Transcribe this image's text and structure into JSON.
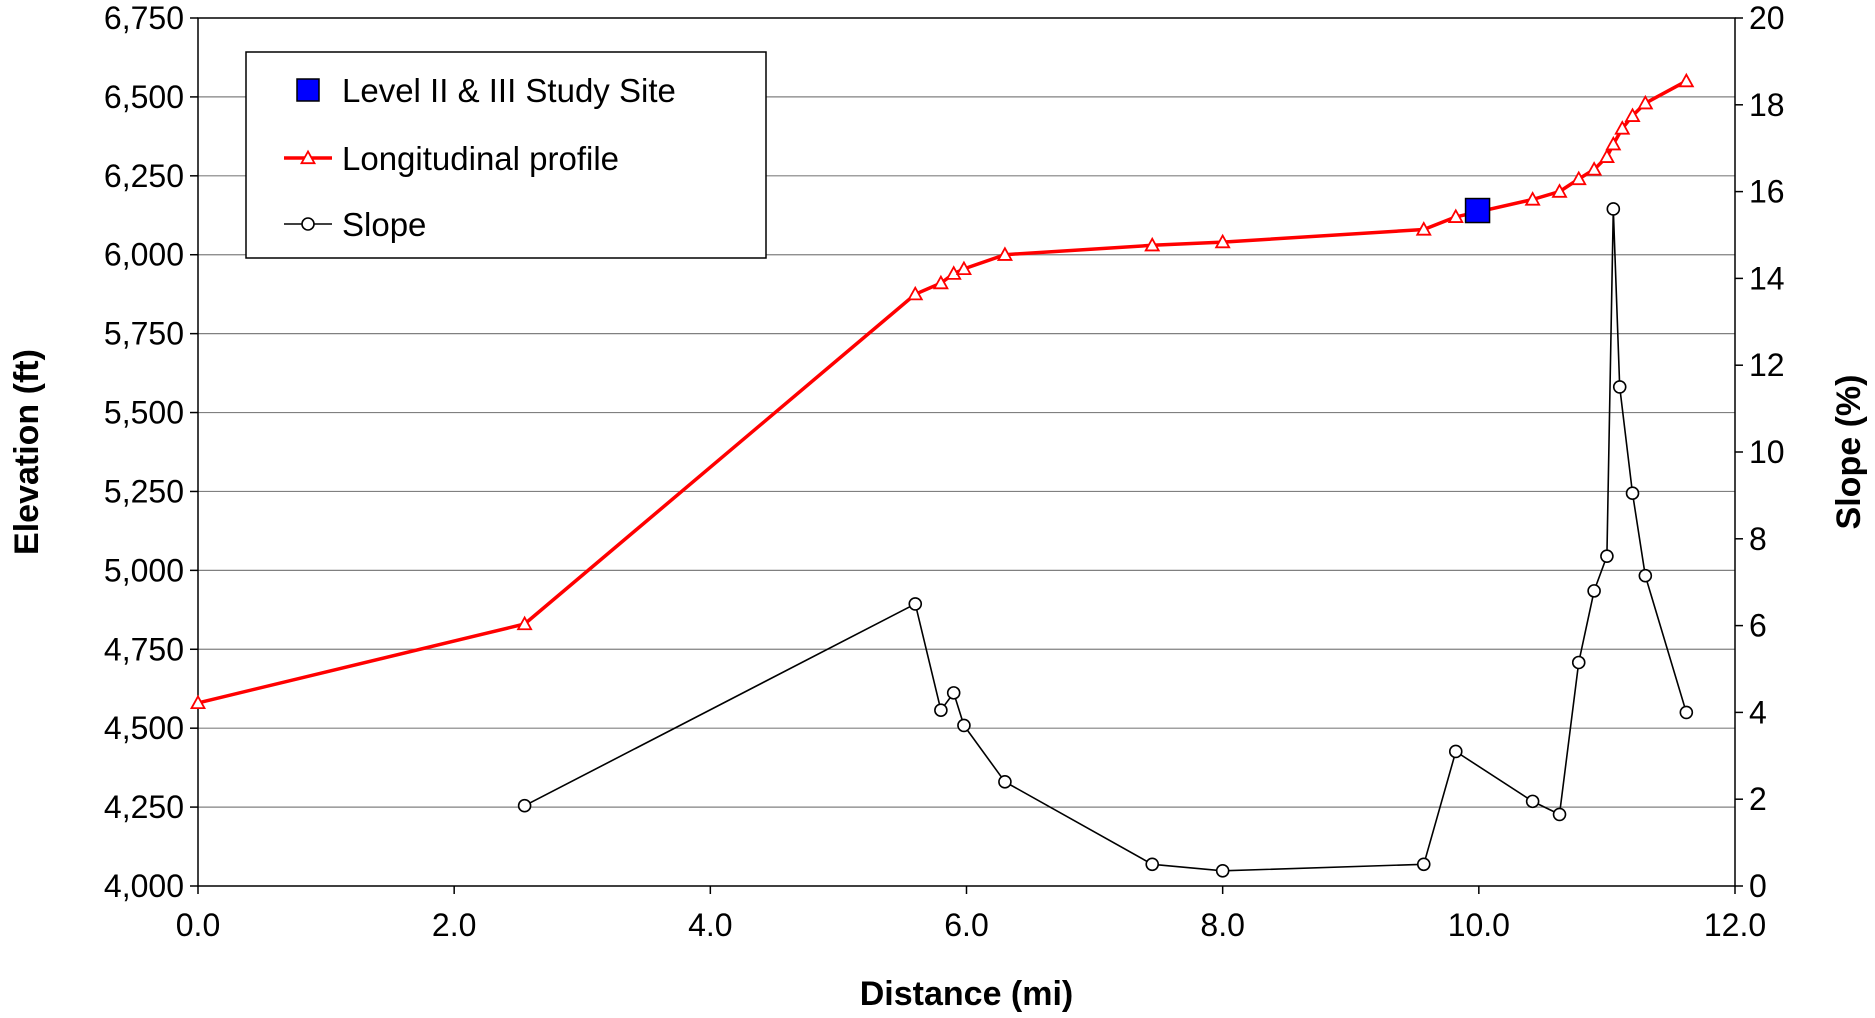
{
  "chart_data": {
    "type": "line",
    "title": "",
    "xlabel": "Distance (mi)",
    "ylabel": "Elevation (ft)",
    "y2label": "Slope (%)",
    "xlim": [
      0,
      12
    ],
    "ylim": [
      4000,
      6750
    ],
    "y2lim": [
      0,
      20
    ],
    "grid": "horizontal",
    "legend_placement": "top-left",
    "x_ticks": [
      "0.0",
      "2.0",
      "4.0",
      "6.0",
      "8.0",
      "10.0",
      "12.0"
    ],
    "y_ticks": [
      "4,000",
      "4,250",
      "4,500",
      "4,750",
      "5,000",
      "5,250",
      "5,500",
      "5,750",
      "6,000",
      "6,250",
      "6,500",
      "6,750"
    ],
    "y2_ticks": [
      "0",
      "2",
      "4",
      "6",
      "8",
      "10",
      "12",
      "14",
      "16",
      "18",
      "20"
    ],
    "series": [
      {
        "name": "Level II & III Study Site",
        "axis": "left",
        "marker": "square",
        "color": "#0000ff",
        "points": [
          [
            9.99,
            6140
          ]
        ]
      },
      {
        "name": "Longitudinal profile",
        "axis": "left",
        "marker": "triangle",
        "color": "#ff0000",
        "points": [
          [
            0.0,
            4580
          ],
          [
            2.55,
            4830
          ],
          [
            5.6,
            5875
          ],
          [
            5.8,
            5910
          ],
          [
            5.9,
            5940
          ],
          [
            5.98,
            5955
          ],
          [
            6.3,
            6000
          ],
          [
            7.45,
            6030
          ],
          [
            8.0,
            6040
          ],
          [
            9.57,
            6080
          ],
          [
            9.82,
            6120
          ],
          [
            10.42,
            6175
          ],
          [
            10.63,
            6200
          ],
          [
            10.78,
            6240
          ],
          [
            10.9,
            6270
          ],
          [
            11.0,
            6310
          ],
          [
            11.05,
            6350
          ],
          [
            11.12,
            6400
          ],
          [
            11.2,
            6440
          ],
          [
            11.3,
            6480
          ],
          [
            11.62,
            6550
          ]
        ]
      },
      {
        "name": "Slope",
        "axis": "right",
        "marker": "circle",
        "color": "#000000",
        "points": [
          [
            2.55,
            1.85
          ],
          [
            5.6,
            6.5
          ],
          [
            5.8,
            4.05
          ],
          [
            5.9,
            4.45
          ],
          [
            5.98,
            3.7
          ],
          [
            6.3,
            2.4
          ],
          [
            7.45,
            0.5
          ],
          [
            8.0,
            0.35
          ],
          [
            9.57,
            0.5
          ],
          [
            9.82,
            3.1
          ],
          [
            10.42,
            1.95
          ],
          [
            10.63,
            1.65
          ],
          [
            10.78,
            5.15
          ],
          [
            10.9,
            6.8
          ],
          [
            11.0,
            7.6
          ],
          [
            11.05,
            15.6
          ],
          [
            11.1,
            11.5
          ],
          [
            11.2,
            9.05
          ],
          [
            11.3,
            7.15
          ],
          [
            11.62,
            4.0
          ]
        ]
      }
    ]
  }
}
